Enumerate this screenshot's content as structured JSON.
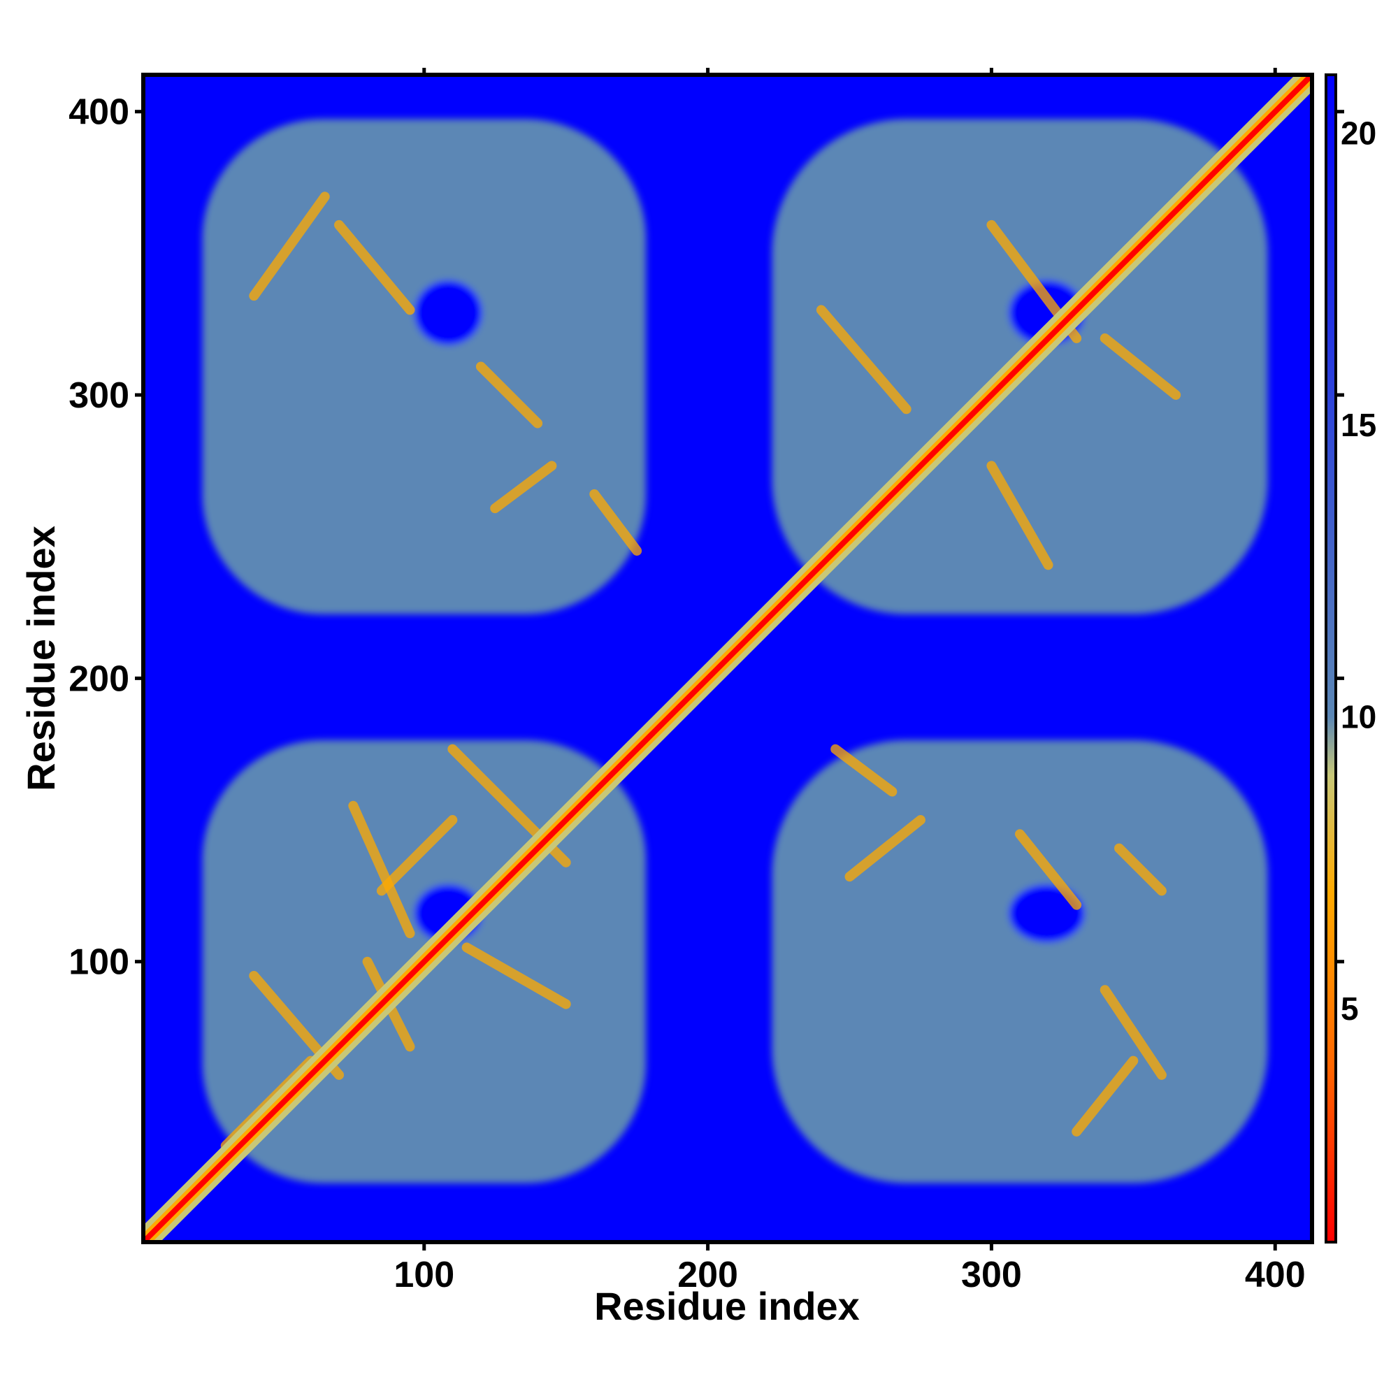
{
  "chart_data": {
    "type": "heatmap",
    "title": "",
    "xlabel": "Residue index",
    "ylabel": "Residue index",
    "xlim": [
      1,
      413
    ],
    "ylim": [
      1,
      413
    ],
    "x_ticks": [
      "100",
      "200",
      "300",
      "400"
    ],
    "y_ticks": [
      "100",
      "200",
      "300",
      "400"
    ],
    "colorbar": {
      "range": [
        1,
        21
      ],
      "ticks": [
        "5",
        "10",
        "15",
        "20"
      ],
      "colors": [
        "#ff0000",
        "#ff6600",
        "#ffaa00",
        "#c8c878",
        "#5b87b5",
        "#0000ff"
      ],
      "stops": [
        1,
        4,
        7,
        9,
        10,
        21
      ]
    },
    "background_value": 21,
    "colors": {
      "background": "#0000ff",
      "contact_region": "#5b87b5",
      "diagonal": "#ff0000",
      "secondary_structure": "#ffaa00"
    },
    "domains": [
      {
        "name": "",
        "x": [
          15,
          185
        ],
        "y": [
          15,
          185
        ]
      },
      {
        "name": "",
        "x": [
          215,
          405
        ],
        "y": [
          215,
          405
        ]
      },
      {
        "name": "",
        "x": [
          15,
          185
        ],
        "y": [
          215,
          405
        ]
      },
      {
        "name": "",
        "x": [
          215,
          405
        ],
        "y": [
          15,
          185
        ]
      }
    ]
  }
}
